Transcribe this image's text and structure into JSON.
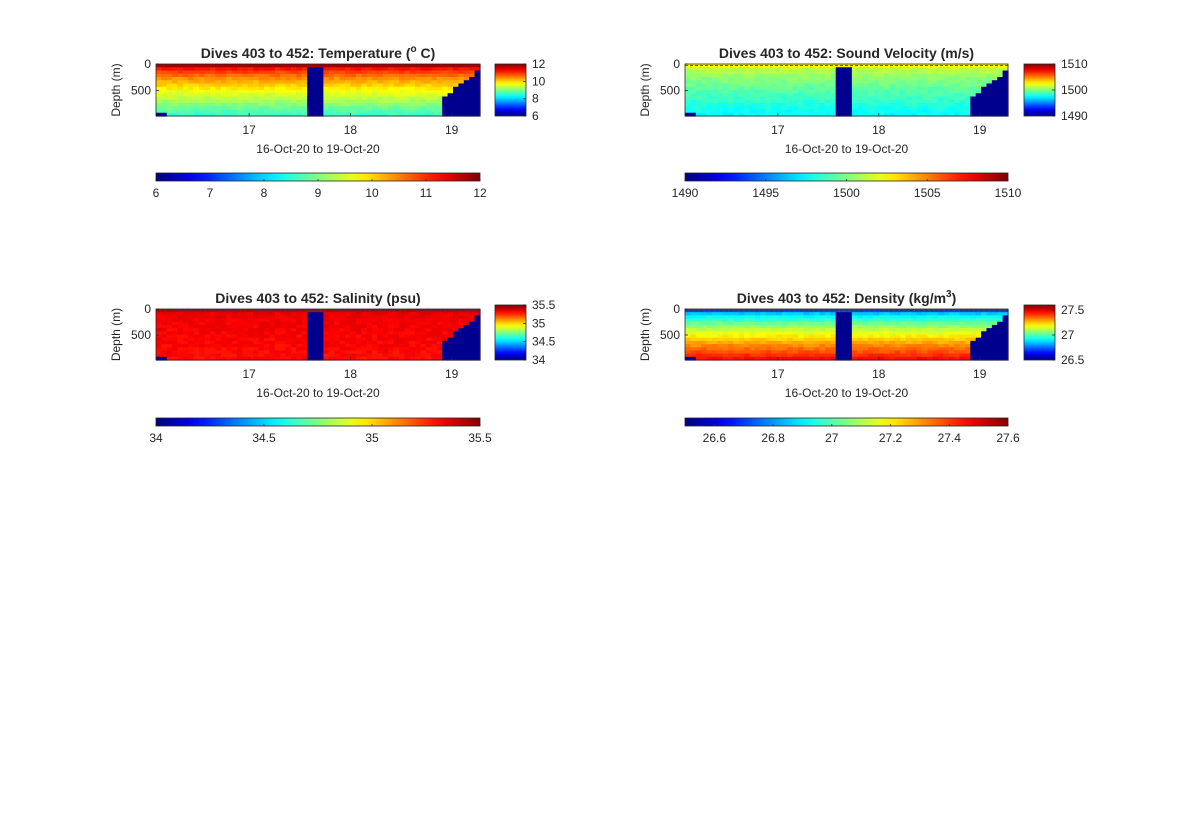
{
  "figure": {
    "background": "#ffffff",
    "colormap": "jet"
  },
  "chart_data": [
    {
      "type": "heatmap",
      "id": "temperature",
      "title": "Dives 403 to 452: Temperature (",
      "title_super": "o",
      "title_tail": " C)",
      "xlabel": "16-Oct-20 to 19-Oct-20",
      "ylabel": "Depth (m)",
      "x_ticks": [
        "17",
        "18",
        "19"
      ],
      "x_tick_values": [
        17,
        18,
        19
      ],
      "xlim": [
        16.08,
        19.28
      ],
      "y_ticks": [
        "0",
        "500"
      ],
      "y_tick_values": [
        0,
        500
      ],
      "ylim": [
        0,
        980
      ],
      "y_reversed": true,
      "color_range": [
        6,
        12
      ],
      "surface_value": 11.6,
      "bottom_value": 8.6,
      "nodata_color": "#00008f",
      "gaps": [
        [
          17.6,
          17.72
        ]
      ],
      "sidebar_ticks": [
        "12",
        "10",
        "8",
        "6"
      ],
      "sidebar_tick_values": [
        12,
        10,
        8,
        6
      ],
      "hbar_ticks": [
        "6",
        "7",
        "8",
        "9",
        "10",
        "11",
        "12"
      ],
      "hbar_tick_values": [
        6,
        7,
        8,
        9,
        10,
        11,
        12
      ]
    },
    {
      "type": "heatmap",
      "id": "sound-velocity",
      "title": "Dives 403 to 452: Sound Velocity (m/s)",
      "xlabel": "16-Oct-20 to 19-Oct-20",
      "ylabel": "Depth (m)",
      "x_ticks": [
        "17",
        "18",
        "19"
      ],
      "x_tick_values": [
        17,
        18,
        19
      ],
      "xlim": [
        16.08,
        19.28
      ],
      "y_ticks": [
        "0",
        "500"
      ],
      "y_tick_values": [
        0,
        500
      ],
      "ylim": [
        0,
        980
      ],
      "y_reversed": true,
      "color_range": [
        1490,
        1510
      ],
      "surface_value": 1502,
      "bottom_value": 1497.5,
      "nodata_color": "#00008f",
      "gaps": [
        [
          17.6,
          17.72
        ]
      ],
      "sidebar_ticks": [
        "1510",
        "1500",
        "1490"
      ],
      "sidebar_tick_values": [
        1510,
        1500,
        1490
      ],
      "hbar_ticks": [
        "1490",
        "1495",
        "1500",
        "1505",
        "1510"
      ],
      "hbar_tick_values": [
        1490,
        1495,
        1500,
        1505,
        1510
      ]
    },
    {
      "type": "heatmap",
      "id": "salinity",
      "title": "Dives 403 to 452: Salinity (psu)",
      "xlabel": "16-Oct-20 to 19-Oct-20",
      "ylabel": "Depth (m)",
      "x_ticks": [
        "17",
        "18",
        "19"
      ],
      "x_tick_values": [
        17,
        18,
        19
      ],
      "xlim": [
        16.08,
        19.28
      ],
      "y_ticks": [
        "0",
        "500"
      ],
      "y_tick_values": [
        0,
        500
      ],
      "ylim": [
        0,
        980
      ],
      "y_reversed": true,
      "color_range": [
        34,
        35.5
      ],
      "surface_value": 35.35,
      "bottom_value": 35.3,
      "nodata_color": "#00008f",
      "gaps": [
        [
          17.6,
          17.72
        ]
      ],
      "sidebar_ticks": [
        "35.5",
        "35",
        "34.5",
        "34"
      ],
      "sidebar_tick_values": [
        35.5,
        35,
        34.5,
        34
      ],
      "hbar_ticks": [
        "34",
        "34.5",
        "35",
        "35.5"
      ],
      "hbar_tick_values": [
        34,
        34.5,
        35,
        35.5
      ]
    },
    {
      "type": "heatmap",
      "id": "density",
      "title": "Dives 403 to 452: Density (kg/m",
      "title_super": "3",
      "title_tail": ")",
      "xlabel": "16-Oct-20 to 19-Oct-20",
      "ylabel": "Depth (m)",
      "x_ticks": [
        "17",
        "18",
        "19"
      ],
      "x_tick_values": [
        17,
        18,
        19
      ],
      "xlim": [
        16.08,
        19.28
      ],
      "y_ticks": [
        "0",
        "500"
      ],
      "y_tick_values": [
        0,
        500
      ],
      "ylim": [
        0,
        980
      ],
      "y_reversed": true,
      "color_range": [
        26.5,
        27.6
      ],
      "surface_value": 26.75,
      "bottom_value": 27.45,
      "nodata_color": "#00008f",
      "gaps": [
        [
          17.6,
          17.72
        ]
      ],
      "sidebar_ticks": [
        "27.5",
        "27",
        "26.5"
      ],
      "sidebar_tick_values": [
        27.5,
        27,
        26.5
      ],
      "sidebar_range": [
        26.5,
        27.6
      ],
      "hbar_ticks": [
        "26.6",
        "26.8",
        "27",
        "27.2",
        "27.4",
        "27.6"
      ],
      "hbar_tick_values": [
        26.6,
        26.8,
        27,
        27.2,
        27.4,
        27.6
      ]
    }
  ]
}
